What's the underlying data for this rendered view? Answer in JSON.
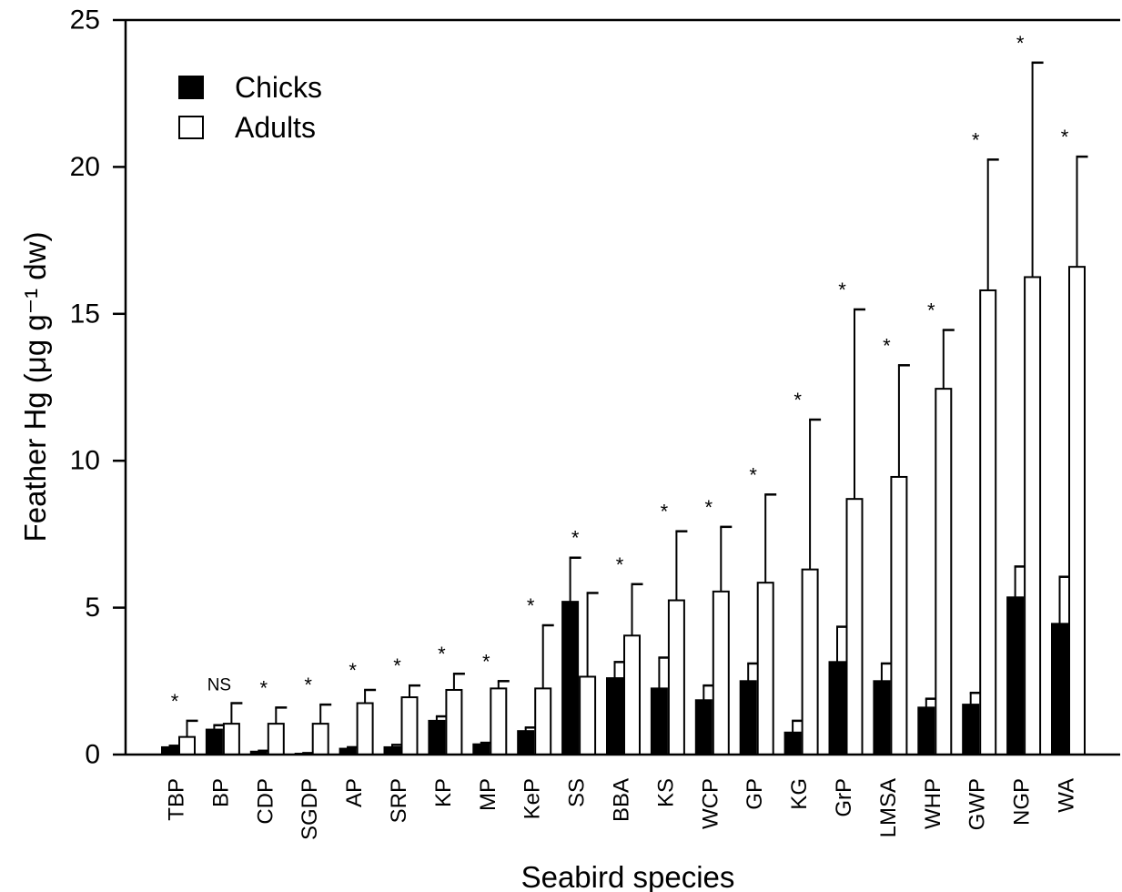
{
  "chart_data": {
    "type": "bar",
    "title": "",
    "xlabel": "Seabird species",
    "ylabel": "Feather Hg (μg g⁻¹ dw)",
    "ylim": [
      0,
      25
    ],
    "yticks": [
      0,
      5,
      10,
      15,
      20,
      25
    ],
    "grid": false,
    "legend_position": "top-left",
    "categories": [
      "TBP",
      "BP",
      "CDP",
      "SGDP",
      "AP",
      "SRP",
      "KP",
      "MP",
      "KeP",
      "SS",
      "BBA",
      "KS",
      "WCP",
      "GP",
      "KG",
      "GrP",
      "LMSA",
      "WHP",
      "GWP",
      "NGP",
      "WA"
    ],
    "series": [
      {
        "name": "Chicks",
        "color": "#000000",
        "fill": "#000000",
        "values": [
          0.25,
          0.85,
          0.1,
          0.03,
          0.2,
          0.25,
          1.15,
          0.35,
          0.8,
          5.2,
          2.6,
          2.25,
          1.85,
          2.5,
          0.75,
          3.15,
          2.5,
          1.6,
          1.7,
          5.35,
          4.45
        ],
        "error": [
          0.05,
          0.15,
          0.03,
          0.02,
          0.05,
          0.08,
          0.15,
          0.05,
          0.12,
          1.5,
          0.55,
          1.05,
          0.5,
          0.6,
          0.4,
          1.2,
          0.6,
          0.3,
          0.4,
          1.05,
          1.6
        ]
      },
      {
        "name": "Adults",
        "color": "#000000",
        "fill": "#ffffff",
        "values": [
          0.6,
          1.05,
          1.05,
          1.05,
          1.75,
          1.95,
          2.2,
          2.25,
          2.25,
          2.65,
          4.05,
          5.25,
          5.55,
          5.85,
          6.3,
          8.7,
          9.45,
          12.45,
          15.8,
          16.25,
          16.6
        ],
        "error": [
          0.55,
          0.7,
          0.55,
          0.65,
          0.45,
          0.4,
          0.55,
          0.25,
          2.15,
          2.85,
          1.75,
          2.35,
          2.2,
          3.0,
          5.1,
          6.45,
          3.8,
          2.0,
          4.45,
          7.3,
          3.75
        ]
      }
    ],
    "significance": [
      "*",
      "NS",
      "*",
      "*",
      "*",
      "*",
      "*",
      "*",
      "*",
      "*",
      "*",
      "*",
      "*",
      "*",
      "*",
      "*",
      "*",
      "*",
      "*",
      "*",
      "*"
    ]
  }
}
